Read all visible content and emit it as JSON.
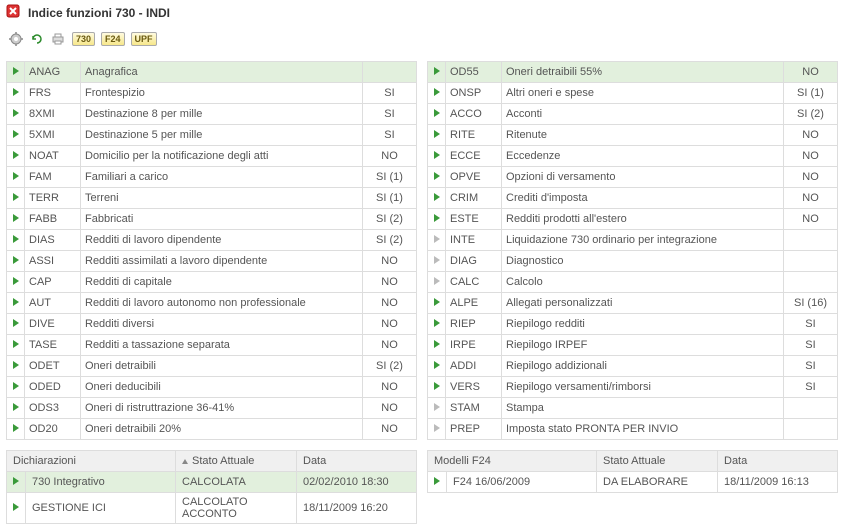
{
  "window": {
    "title": "Indice funzioni 730 - INDI"
  },
  "toolbar": {
    "icons": [
      "gear-icon",
      "refresh-icon",
      "printer-icon"
    ],
    "badges": [
      "730",
      "F24",
      "UPF"
    ]
  },
  "columns": {
    "left": [
      {
        "code": "ANAG",
        "desc": "Anagrafica",
        "stat": "",
        "header": true
      },
      {
        "code": "FRS",
        "desc": "Frontespizio",
        "stat": "SI"
      },
      {
        "code": "8XMI",
        "desc": "Destinazione 8 per mille",
        "stat": "SI"
      },
      {
        "code": "5XMI",
        "desc": "Destinazione 5 per mille",
        "stat": "SI"
      },
      {
        "code": "NOAT",
        "desc": "Domicilio per la notificazione degli atti",
        "stat": "NO"
      },
      {
        "code": "FAM",
        "desc": "Familiari a carico",
        "stat": "SI (1)"
      },
      {
        "code": "TERR",
        "desc": "Terreni",
        "stat": "SI (1)"
      },
      {
        "code": "FABB",
        "desc": "Fabbricati",
        "stat": "SI (2)"
      },
      {
        "code": "DIAS",
        "desc": "Redditi di lavoro dipendente",
        "stat": "SI (2)"
      },
      {
        "code": "ASSI",
        "desc": "Redditi assimilati a lavoro dipendente",
        "stat": "NO"
      },
      {
        "code": "CAP",
        "desc": "Redditi di capitale",
        "stat": "NO"
      },
      {
        "code": "AUT",
        "desc": "Redditi di lavoro autonomo non professionale",
        "stat": "NO"
      },
      {
        "code": "DIVE",
        "desc": "Redditi diversi",
        "stat": "NO"
      },
      {
        "code": "TASE",
        "desc": "Redditi a tassazione separata",
        "stat": "NO"
      },
      {
        "code": "ODET",
        "desc": "Oneri detraibili",
        "stat": "SI (2)"
      },
      {
        "code": "ODED",
        "desc": "Oneri deducibili",
        "stat": "NO"
      },
      {
        "code": "ODS3",
        "desc": "Oneri di ristruttrazione 36-41%",
        "stat": "NO"
      },
      {
        "code": "OD20",
        "desc": "Oneri detraibili 20%",
        "stat": "NO"
      }
    ],
    "right": [
      {
        "code": "OD55",
        "desc": "Oneri detraibili 55%",
        "stat": "NO",
        "header": true
      },
      {
        "code": "ONSP",
        "desc": "Altri oneri e spese",
        "stat": "SI (1)"
      },
      {
        "code": "ACCO",
        "desc": "Acconti",
        "stat": "SI (2)"
      },
      {
        "code": "RITE",
        "desc": "Ritenute",
        "stat": "NO"
      },
      {
        "code": "ECCE",
        "desc": "Eccedenze",
        "stat": "NO"
      },
      {
        "code": "OPVE",
        "desc": "Opzioni di versamento",
        "stat": "NO"
      },
      {
        "code": "CRIM",
        "desc": "Crediti d'imposta",
        "stat": "NO"
      },
      {
        "code": "ESTE",
        "desc": "Redditi prodotti all'estero",
        "stat": "NO"
      },
      {
        "code": "INTE",
        "desc": "Liquidazione 730 ordinario per integrazione",
        "stat": ""
      },
      {
        "code": "DIAG",
        "desc": "Diagnostico",
        "stat": ""
      },
      {
        "code": "CALC",
        "desc": "Calcolo",
        "stat": ""
      },
      {
        "code": "ALPE",
        "desc": "Allegati personalizzati",
        "stat": "SI (16)"
      },
      {
        "code": "RIEP",
        "desc": "Riepilogo redditi",
        "stat": "SI"
      },
      {
        "code": "IRPE",
        "desc": "Riepilogo IRPEF",
        "stat": "SI"
      },
      {
        "code": "ADDI",
        "desc": "Riepilogo addizionali",
        "stat": "SI"
      },
      {
        "code": "VERS",
        "desc": "Riepilogo versamenti/rimborsi",
        "stat": "SI"
      },
      {
        "code": "STAM",
        "desc": "Stampa",
        "stat": ""
      },
      {
        "code": "PREP",
        "desc": "Imposta stato PRONTA PER INVIO",
        "stat": ""
      }
    ]
  },
  "bottom_left": {
    "headers": [
      "Dichiarazioni",
      "Stato Attuale",
      "Data"
    ],
    "rows": [
      {
        "name": "730 Integrativo",
        "state": "CALCOLATA",
        "date": "02/02/2010 18:30",
        "hl": true
      },
      {
        "name": "GESTIONE ICI",
        "state": "CALCOLATO ACCONTO",
        "date": "18/11/2009 16:20"
      }
    ]
  },
  "bottom_right": {
    "headers": [
      "Modelli F24",
      "Stato Attuale",
      "Data"
    ],
    "rows": [
      {
        "name": "F24 16/06/2009",
        "state": "DA ELABORARE",
        "date": "18/11/2009 16:13"
      }
    ]
  }
}
